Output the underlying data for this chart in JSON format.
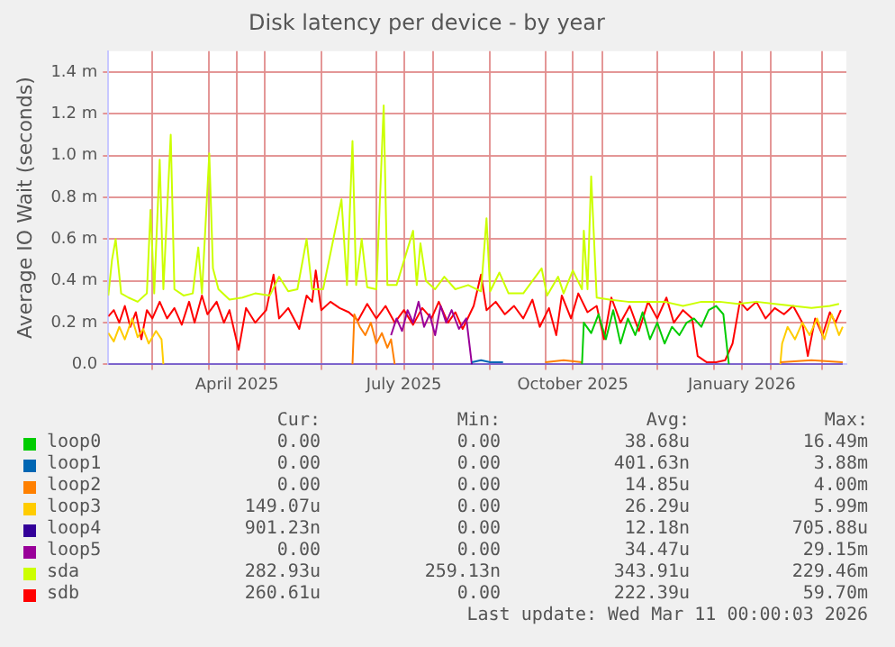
{
  "chart_data": {
    "type": "line",
    "title": "Disk latency per device - by year",
    "ylabel": "Average IO Wait (seconds)",
    "xlim": [
      "2025-02-05",
      "2026-03-14"
    ],
    "ylim": [
      0,
      1.5
    ],
    "xticks": [
      {
        "value": "2025-03-01",
        "label": null
      },
      {
        "value": "2025-04-01",
        "label": null
      },
      {
        "value": "2025-04-16",
        "label": "April 2025"
      },
      {
        "value": "2025-05-01",
        "label": null
      },
      {
        "value": "2025-06-01",
        "label": null
      },
      {
        "value": "2025-07-01",
        "label": null
      },
      {
        "value": "2025-07-16",
        "label": "July 2025"
      },
      {
        "value": "2025-08-01",
        "label": null
      },
      {
        "value": "2025-09-01",
        "label": null
      },
      {
        "value": "2025-10-01",
        "label": null
      },
      {
        "value": "2025-10-16",
        "label": "October 2025"
      },
      {
        "value": "2025-11-01",
        "label": null
      },
      {
        "value": "2025-12-01",
        "label": null
      },
      {
        "value": "2026-01-01",
        "label": null
      },
      {
        "value": "2026-01-16",
        "label": "January 2026"
      },
      {
        "value": "2026-02-01",
        "label": null
      },
      {
        "value": "2026-03-01",
        "label": null
      }
    ],
    "yticks": [
      {
        "value": 0,
        "label": "0.0"
      },
      {
        "value": 0.2,
        "label": "0.2 m"
      },
      {
        "value": 0.4,
        "label": "0.4 m"
      },
      {
        "value": 0.6,
        "label": "0.6 m"
      },
      {
        "value": 0.8,
        "label": "0.8 m"
      },
      {
        "value": 1.0,
        "label": "1.0 m"
      },
      {
        "value": 1.2,
        "label": "1.2 m"
      },
      {
        "value": 1.4,
        "label": "1.4 m"
      }
    ],
    "grid": true,
    "legend": "bottom",
    "marker": "none",
    "series": [
      {
        "name": "loop0",
        "color": "#00cc00",
        "x": [
          "2025-10-21",
          "2025-10-22",
          "2025-10-26",
          "2025-10-30",
          "2025-11-03",
          "2025-11-07",
          "2025-11-11",
          "2025-11-15",
          "2025-11-19",
          "2025-11-23",
          "2025-11-27",
          "2025-12-01",
          "2025-12-05",
          "2025-12-09",
          "2025-12-13",
          "2025-12-17",
          "2025-12-21",
          "2025-12-25",
          "2025-12-29",
          "2026-01-02",
          "2026-01-06",
          "2026-01-09"
        ],
        "values": [
          0,
          0.2,
          0.15,
          0.24,
          0.12,
          0.26,
          0.1,
          0.22,
          0.14,
          0.25,
          0.12,
          0.2,
          0.1,
          0.18,
          0.14,
          0.2,
          0.22,
          0.18,
          0.26,
          0.28,
          0.24,
          0
        ]
      },
      {
        "name": "loop1",
        "color": "#0066b3",
        "x": [
          "2025-08-22",
          "2025-08-27",
          "2025-09-01",
          "2025-09-08"
        ],
        "values": [
          0.01,
          0.02,
          0.01,
          0.01
        ]
      },
      {
        "name": "loop2",
        "color": "#ff8000",
        "x": [
          "2025-06-18",
          "2025-06-19",
          "2025-06-22",
          "2025-06-25",
          "2025-06-28",
          "2025-07-01",
          "2025-07-04",
          "2025-07-07",
          "2025-07-09",
          "2025-07-11",
          "2025-08-01",
          "2025-10-01",
          "2025-10-11",
          "2025-10-21",
          "2025-12-01",
          "2026-02-06",
          "2026-02-23",
          "2026-03-12"
        ],
        "values": [
          0,
          0.24,
          0.18,
          0.14,
          0.2,
          0.1,
          0.15,
          0.08,
          0.12,
          0,
          null,
          0.01,
          0.02,
          0.01,
          null,
          0.01,
          0.02,
          0.01
        ]
      },
      {
        "name": "loop3",
        "color": "#ffcc00",
        "x": [
          "2025-02-05",
          "2025-02-08",
          "2025-02-11",
          "2025-02-14",
          "2025-02-18",
          "2025-02-21",
          "2025-02-24",
          "2025-02-27",
          "2025-03-03",
          "2025-03-06",
          "2025-03-07",
          "2025-06-01",
          "2026-02-06",
          "2026-02-07",
          "2026-02-10",
          "2026-02-14",
          "2026-02-18",
          "2026-02-22",
          "2026-02-26",
          "2026-03-02",
          "2026-03-06",
          "2026-03-10",
          "2026-03-12"
        ],
        "values": [
          0.15,
          0.11,
          0.18,
          0.12,
          0.22,
          0.13,
          0.17,
          0.1,
          0.16,
          0.12,
          0,
          null,
          0,
          0.1,
          0.18,
          0.12,
          0.2,
          0.14,
          0.22,
          0.12,
          0.24,
          0.14,
          0.18
        ]
      },
      {
        "name": "loop4",
        "color": "#330099",
        "x": [
          "2025-02-05",
          "2026-03-12"
        ],
        "values": [
          0,
          0
        ]
      },
      {
        "name": "loop5",
        "color": "#990099",
        "x": [
          "2025-07-09",
          "2025-07-12",
          "2025-07-15",
          "2025-07-18",
          "2025-07-21",
          "2025-07-24",
          "2025-07-27",
          "2025-07-30",
          "2025-08-02",
          "2025-08-05",
          "2025-08-08",
          "2025-08-11",
          "2025-08-15",
          "2025-08-19",
          "2025-08-22"
        ],
        "values": [
          0.14,
          0.22,
          0.16,
          0.26,
          0.2,
          0.3,
          0.18,
          0.24,
          0.14,
          0.28,
          0.2,
          0.26,
          0.17,
          0.22,
          0
        ]
      },
      {
        "name": "sda",
        "color": "#ccff00",
        "x": [
          "2025-02-05",
          "2025-02-07",
          "2025-02-09",
          "2025-02-12",
          "2025-02-16",
          "2025-02-21",
          "2025-02-26",
          "2025-02-28",
          "2025-03-02",
          "2025-03-05",
          "2025-03-07",
          "2025-03-11",
          "2025-03-13",
          "2025-03-18",
          "2025-03-23",
          "2025-03-26",
          "2025-03-28",
          "2025-04-01",
          "2025-04-03",
          "2025-04-06",
          "2025-04-12",
          "2025-04-19",
          "2025-04-26",
          "2025-05-04",
          "2025-05-09",
          "2025-05-14",
          "2025-05-19",
          "2025-05-24",
          "2025-05-27",
          "2025-06-02",
          "2025-06-12",
          "2025-06-15",
          "2025-06-18",
          "2025-06-20",
          "2025-06-23",
          "2025-06-26",
          "2025-07-01",
          "2025-07-05",
          "2025-07-07",
          "2025-07-12",
          "2025-07-21",
          "2025-07-23",
          "2025-07-25",
          "2025-07-28",
          "2025-08-02",
          "2025-08-07",
          "2025-08-13",
          "2025-08-20",
          "2025-08-27",
          "2025-08-30",
          "2025-09-01",
          "2025-09-06",
          "2025-09-11",
          "2025-09-19",
          "2025-09-29",
          "2025-10-02",
          "2025-10-08",
          "2025-10-11",
          "2025-10-16",
          "2025-10-21",
          "2025-10-22",
          "2025-10-24",
          "2025-10-26",
          "2025-10-29",
          "2025-11-05",
          "2025-11-15",
          "2025-11-25",
          "2025-12-05",
          "2025-12-15",
          "2025-12-25",
          "2026-01-04",
          "2026-01-14",
          "2026-01-24",
          "2026-02-03",
          "2026-02-13",
          "2026-02-23",
          "2026-03-05",
          "2026-03-10"
        ],
        "values": [
          0.33,
          0.5,
          0.6,
          0.34,
          0.32,
          0.3,
          0.34,
          0.74,
          0.34,
          0.98,
          0.36,
          1.1,
          0.36,
          0.33,
          0.34,
          0.56,
          0.34,
          1.01,
          0.46,
          0.36,
          0.31,
          0.32,
          0.34,
          0.33,
          0.42,
          0.35,
          0.36,
          0.6,
          0.36,
          0.36,
          0.79,
          0.38,
          1.07,
          0.38,
          0.6,
          0.37,
          0.36,
          1.24,
          0.38,
          0.38,
          0.64,
          0.38,
          0.58,
          0.4,
          0.36,
          0.42,
          0.36,
          0.38,
          0.35,
          0.7,
          0.35,
          0.44,
          0.34,
          0.34,
          0.46,
          0.33,
          0.42,
          0.34,
          0.45,
          0.36,
          0.64,
          0.36,
          0.9,
          0.32,
          0.31,
          0.3,
          0.3,
          0.3,
          0.28,
          0.3,
          0.3,
          0.29,
          0.3,
          0.29,
          0.28,
          0.27,
          0.28,
          0.29
        ]
      },
      {
        "name": "sdb",
        "color": "#ff0000",
        "x": [
          "2025-02-05",
          "2025-02-08",
          "2025-02-11",
          "2025-02-14",
          "2025-02-17",
          "2025-02-20",
          "2025-02-23",
          "2025-02-26",
          "2025-03-01",
          "2025-03-05",
          "2025-03-09",
          "2025-03-13",
          "2025-03-17",
          "2025-03-21",
          "2025-03-24",
          "2025-03-28",
          "2025-03-31",
          "2025-04-05",
          "2025-04-09",
          "2025-04-12",
          "2025-04-17",
          "2025-04-21",
          "2025-04-26",
          "2025-05-02",
          "2025-05-06",
          "2025-05-09",
          "2025-05-14",
          "2025-05-20",
          "2025-05-24",
          "2025-05-27",
          "2025-05-29",
          "2025-06-01",
          "2025-06-06",
          "2025-06-11",
          "2025-06-16",
          "2025-06-21",
          "2025-06-26",
          "2025-07-01",
          "2025-07-06",
          "2025-07-11",
          "2025-07-16",
          "2025-07-21",
          "2025-07-26",
          "2025-07-31",
          "2025-08-04",
          "2025-08-09",
          "2025-08-13",
          "2025-08-17",
          "2025-08-23",
          "2025-08-27",
          "2025-08-30",
          "2025-09-04",
          "2025-09-09",
          "2025-09-14",
          "2025-09-19",
          "2025-09-24",
          "2025-09-28",
          "2025-10-03",
          "2025-10-07",
          "2025-10-10",
          "2025-10-15",
          "2025-10-19",
          "2025-10-24",
          "2025-10-29",
          "2025-11-02",
          "2025-11-06",
          "2025-11-11",
          "2025-11-16",
          "2025-11-21",
          "2025-11-26",
          "2025-12-01",
          "2025-12-06",
          "2025-12-10",
          "2025-12-15",
          "2025-12-20",
          "2025-12-23",
          "2025-12-28",
          "2026-01-02",
          "2026-01-07",
          "2026-01-11",
          "2026-01-15",
          "2026-01-19",
          "2026-01-24",
          "2026-01-29",
          "2026-02-03",
          "2026-02-08",
          "2026-02-13",
          "2026-02-18",
          "2026-02-21",
          "2026-02-25",
          "2026-03-01",
          "2026-03-05",
          "2026-03-08",
          "2026-03-11"
        ],
        "values": [
          0.23,
          0.26,
          0.2,
          0.28,
          0.18,
          0.25,
          0.12,
          0.26,
          0.22,
          0.3,
          0.22,
          0.27,
          0.19,
          0.3,
          0.2,
          0.33,
          0.24,
          0.3,
          0.2,
          0.26,
          0.07,
          0.27,
          0.2,
          0.26,
          0.43,
          0.22,
          0.27,
          0.17,
          0.33,
          0.3,
          0.45,
          0.26,
          0.3,
          0.27,
          0.25,
          0.21,
          0.29,
          0.22,
          0.28,
          0.2,
          0.26,
          0.19,
          0.27,
          0.22,
          0.3,
          0.2,
          0.25,
          0.17,
          0.28,
          0.43,
          0.26,
          0.3,
          0.24,
          0.28,
          0.22,
          0.31,
          0.18,
          0.27,
          0.14,
          0.33,
          0.22,
          0.34,
          0.25,
          0.28,
          0.12,
          0.32,
          0.2,
          0.28,
          0.16,
          0.3,
          0.22,
          0.32,
          0.2,
          0.26,
          0.22,
          0.04,
          0.01,
          0.01,
          0.02,
          0.1,
          0.3,
          0.26,
          0.3,
          0.22,
          0.27,
          0.24,
          0.28,
          0.2,
          0.04,
          0.22,
          0.14,
          0.25,
          0.2,
          0.26
        ]
      }
    ],
    "annotations": [
      "Cur:",
      "Min:",
      "Avg:",
      "Max:",
      "0.00",
      "0.00",
      "38.68u",
      "16.49m",
      "0.00",
      "0.00",
      "401.63n",
      "3.88m",
      "0.00",
      "0.00",
      "14.85u",
      "4.00m",
      "149.07u",
      "0.00",
      "26.29u",
      "5.99m",
      "901.23n",
      "0.00",
      "12.18n",
      "705.88u",
      "0.00",
      "0.00",
      "34.47u",
      "29.15m",
      "282.93u",
      "259.13n",
      "343.91u",
      "229.46m",
      "260.61u",
      "0.00",
      "222.39u",
      "59.70m",
      "Last update: Wed Mar 11 00:00:03 2026"
    ]
  }
}
